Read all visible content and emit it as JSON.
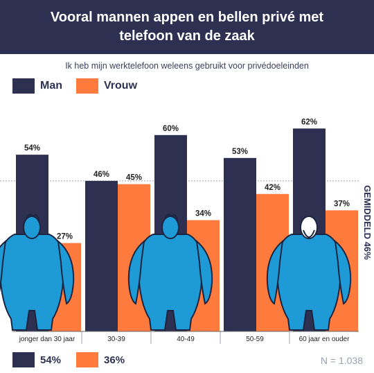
{
  "header": {
    "title": "Vooral mannen appen en bellen privé met telefoon van de zaak"
  },
  "subtitle": "Ik heb mijn werktelefoon weleens gebruikt voor privédoeleinden",
  "legend": [
    {
      "label": "Man",
      "color": "#2d3050"
    },
    {
      "label": "Vrouw",
      "color": "#ff7a3d"
    }
  ],
  "average_label": "GEMIDDELD 46%",
  "footer": {
    "man_total": "54%",
    "vrouw_total": "36%",
    "n_label": "N = 1.038"
  },
  "figure_color": "#1e9ad6",
  "chart_data": {
    "type": "bar",
    "categories": [
      "jonger dan 30 jaar",
      "30-39",
      "40-49",
      "50-59",
      "60 jaar en ouder"
    ],
    "series": [
      {
        "name": "Man",
        "values": [
          54,
          46,
          60,
          53,
          62
        ],
        "labels": [
          "54%",
          "46%",
          "60%",
          "53%",
          "62%"
        ]
      },
      {
        "name": "Vrouw",
        "values": [
          27,
          45,
          34,
          42,
          37
        ],
        "labels": [
          "27%",
          "45%",
          "34%",
          "42%",
          "37%"
        ]
      }
    ],
    "reference_line": 46,
    "ylim": [
      0,
      70
    ],
    "grid": false
  }
}
